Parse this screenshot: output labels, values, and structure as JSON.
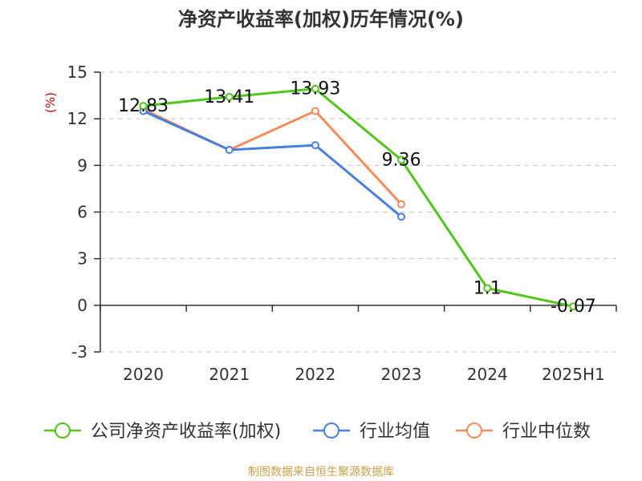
{
  "chart_data": {
    "type": "line",
    "title": "净资产收益率(加权)历年情况(%)",
    "ylabel": "(%)",
    "categories": [
      "2020",
      "2021",
      "2022",
      "2023",
      "2024",
      "2025H1"
    ],
    "yticks": [
      "-3",
      "0",
      "3",
      "6",
      "9",
      "12",
      "15"
    ],
    "ylim": [
      -3,
      15
    ],
    "grid": true,
    "legend_position": "bottom",
    "series": [
      {
        "name": "公司净资产收益率(加权)",
        "color": "#52c41a",
        "values": [
          12.83,
          13.41,
          13.93,
          9.36,
          1.1,
          -0.07
        ],
        "labels": [
          "12.83",
          "13.41",
          "13.93",
          "9.36",
          "1.1",
          "-0.07"
        ]
      },
      {
        "name": "行业均值",
        "color": "#4a7fdc",
        "values": [
          12.5,
          10.0,
          10.3,
          5.7,
          null,
          null
        ]
      },
      {
        "name": "行业中位数",
        "color": "#f58c5a",
        "values": [
          12.6,
          10.0,
          12.5,
          6.5,
          null,
          null
        ]
      }
    ]
  },
  "footer": {
    "source": "制图数据来自恒生聚源数据库"
  }
}
